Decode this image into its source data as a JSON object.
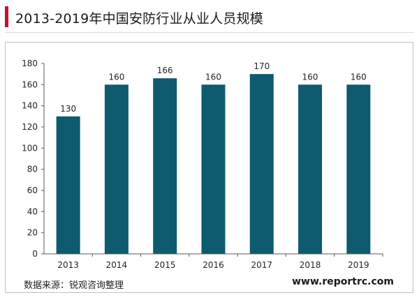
{
  "header": {
    "title": "2013-2019年中国安防行业从业人员规模",
    "accent_color": "#c8102e"
  },
  "footer": {
    "source": "数据来源：锐观咨询整理",
    "website": "www.reportrc.com"
  },
  "chart_data": {
    "type": "bar",
    "title": "",
    "categories": [
      "2013",
      "2014",
      "2015",
      "2016",
      "2017",
      "2018",
      "2019"
    ],
    "values": [
      130,
      160,
      166,
      160,
      170,
      160,
      160
    ],
    "data_labels": [
      "130",
      "160",
      "166",
      "160",
      "170",
      "160",
      "160"
    ],
    "ylim": [
      0,
      180
    ],
    "yticks": [
      "0",
      "20",
      "40",
      "60",
      "80",
      "100",
      "120",
      "140",
      "160",
      "180"
    ],
    "bar_color": "#0e5a6e",
    "grid": false
  }
}
